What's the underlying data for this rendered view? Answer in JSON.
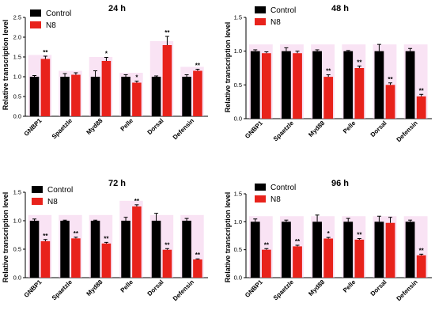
{
  "colors": {
    "control": "#000000",
    "n8": "#e8221b",
    "halo": "#f2c2e6"
  },
  "chart_data": [
    {
      "type": "bar",
      "title": "24 h",
      "ylabel": "Relative transcription level",
      "ylim": [
        0,
        2.5
      ],
      "yticks": [
        "0.0",
        "0.5",
        "1.0",
        "1.5",
        "2.0",
        "2.5"
      ],
      "categories": [
        "GNBP1",
        "Spaetzle",
        "Myd88",
        "Pelle",
        "Dorsal",
        "Defensin"
      ],
      "series": [
        {
          "name": "Control",
          "values": [
            1.0,
            1.0,
            1.0,
            1.0,
            1.0,
            1.0
          ],
          "errors": [
            0.03,
            0.08,
            0.15,
            0.05,
            0.02,
            0.05
          ]
        },
        {
          "name": "N8",
          "values": [
            1.45,
            1.05,
            1.4,
            0.85,
            1.8,
            1.15
          ],
          "errors": [
            0.07,
            0.05,
            0.09,
            0.04,
            0.22,
            0.04
          ]
        }
      ],
      "significance": [
        "**",
        "",
        "*",
        "*",
        "**",
        "**"
      ],
      "legend_position": "top-left"
    },
    {
      "type": "bar",
      "title": "48 h",
      "ylabel": "Relative transcription level",
      "ylim": [
        0,
        1.5
      ],
      "yticks": [
        "0.0",
        "0.5",
        "1.0",
        "1.5"
      ],
      "categories": [
        "GNBP1",
        "Spaetzle",
        "Myd88",
        "Pelle",
        "Dorsal",
        "Defensin"
      ],
      "series": [
        {
          "name": "Control",
          "values": [
            1.0,
            1.0,
            1.0,
            1.0,
            1.0,
            1.0
          ],
          "errors": [
            0.02,
            0.05,
            0.02,
            0.01,
            0.1,
            0.04
          ]
        },
        {
          "name": "N8",
          "values": [
            0.97,
            0.97,
            0.62,
            0.75,
            0.5,
            0.33
          ],
          "errors": [
            0.02,
            0.03,
            0.03,
            0.03,
            0.03,
            0.03
          ]
        }
      ],
      "significance": [
        "",
        "",
        "**",
        "**",
        "**",
        "**"
      ],
      "legend_position": "top-left"
    },
    {
      "type": "bar",
      "title": "72 h",
      "ylabel": "Relative transcription level",
      "ylim": [
        0,
        1.5
      ],
      "yticks": [
        "0.0",
        "0.5",
        "1.0",
        "1.5"
      ],
      "categories": [
        "GNBP1",
        "Spaetzle",
        "Myd88",
        "Pelle",
        "Dorsal",
        "Defensin"
      ],
      "series": [
        {
          "name": "Control",
          "values": [
            1.0,
            1.0,
            1.0,
            1.0,
            1.0,
            1.0
          ],
          "errors": [
            0.03,
            0.01,
            0.01,
            0.06,
            0.13,
            0.04
          ]
        },
        {
          "name": "N8",
          "values": [
            0.64,
            0.69,
            0.6,
            1.25,
            0.49,
            0.32
          ],
          "errors": [
            0.03,
            0.02,
            0.02,
            0.03,
            0.02,
            0.01
          ]
        }
      ],
      "significance": [
        "**",
        "**",
        "**",
        "**",
        "**",
        "**"
      ],
      "legend_position": "top-left"
    },
    {
      "type": "bar",
      "title": "96 h",
      "ylabel": "Relative transcription level",
      "ylim": [
        0,
        1.5
      ],
      "yticks": [
        "0.0",
        "0.5",
        "1.0",
        "1.5"
      ],
      "categories": [
        "GNBP1",
        "Spaetzle",
        "Myd88",
        "Pelle",
        "Dorsal",
        "Defensin"
      ],
      "series": [
        {
          "name": "Control",
          "values": [
            1.0,
            1.0,
            1.0,
            1.0,
            1.0,
            1.0
          ],
          "errors": [
            0.05,
            0.03,
            0.12,
            0.06,
            0.1,
            0.03
          ]
        },
        {
          "name": "N8",
          "values": [
            0.5,
            0.56,
            0.7,
            0.68,
            0.98,
            0.4
          ],
          "errors": [
            0.02,
            0.02,
            0.02,
            0.02,
            0.1,
            0.02
          ]
        }
      ],
      "significance": [
        "**",
        "**",
        "*",
        "**",
        "",
        "**"
      ],
      "legend_position": "top-left"
    }
  ]
}
